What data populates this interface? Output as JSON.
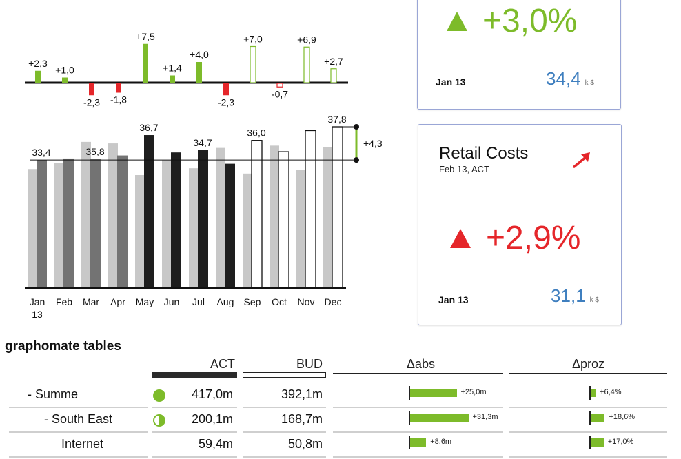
{
  "chart_data": [
    {
      "type": "bar",
      "role": "variance",
      "categories": [
        "Jan 13",
        "Feb",
        "Mar",
        "Apr",
        "May",
        "Jun",
        "Jul",
        "Aug",
        "Sep",
        "Oct",
        "Nov",
        "Dec"
      ],
      "values": [
        2.3,
        1.0,
        -2.3,
        -1.8,
        7.5,
        1.4,
        4.0,
        -2.3,
        7.0,
        -0.7,
        6.9,
        2.7
      ],
      "labels": [
        "+2,3",
        "+1,0",
        "-2,3",
        "-1,8",
        "+7,5",
        "+1,4",
        "+4,0",
        "-2,3",
        "+7,0",
        "-0,7",
        "+6,9",
        "+2,7"
      ],
      "forecast_from_index": 8,
      "colors": {
        "positive": "#7dbb2a",
        "negative": "#e5262a"
      }
    },
    {
      "type": "bar",
      "role": "comparison",
      "categories": [
        "Jan 13",
        "Feb",
        "Mar",
        "Apr",
        "May",
        "Jun",
        "Jul",
        "Aug",
        "Sep",
        "Oct",
        "Nov",
        "Dec"
      ],
      "series": [
        {
          "values": [
            32.2,
            33.0,
            35.8,
            35.6,
            31.4,
            33.4,
            32.3,
            35.0,
            31.6,
            35.3,
            32.1,
            35.1
          ]
        },
        {
          "values": [
            33.4,
            33.6,
            33.5,
            34.0,
            36.7,
            34.4,
            34.7,
            32.9,
            36.0,
            34.5,
            37.3,
            37.8
          ]
        }
      ],
      "value_labels": [
        "33,4",
        "",
        "35,8",
        "",
        "36,7",
        "",
        "34,7",
        "",
        "36,0",
        "",
        "",
        "37,8"
      ],
      "label_index": [
        0,
        2,
        4,
        6,
        8,
        11
      ],
      "forecast_from_index": 8,
      "reference_value": 33.4,
      "difference_label": "+4,3",
      "ylim": [
        16.5,
        38.3
      ],
      "xtick_lines": [
        [
          "Jan",
          "13"
        ],
        [
          "Feb"
        ],
        [
          "Mar"
        ],
        [
          "Apr"
        ],
        [
          "May"
        ],
        [
          "Jun"
        ],
        [
          "Jul"
        ],
        [
          "Aug"
        ],
        [
          "Sep"
        ],
        [
          "Oct"
        ],
        [
          "Nov"
        ],
        [
          "Dec"
        ]
      ],
      "colors": {
        "prev_year": "#c8c8c8",
        "act_early": "#737373",
        "act": "#1e1e1e",
        "forecast_fill": "#ffffff",
        "forecast_stroke": "#111111"
      }
    }
  ],
  "kpi_top": {
    "big_value": "+3,0%",
    "date": "Jan 13",
    "value": "34,4",
    "unit": "k $",
    "color": "#7dbb2a"
  },
  "kpi_retail": {
    "title": "Retail Costs",
    "subtitle": "Feb 13, ACT",
    "big_value": "+2,9%",
    "date": "Jan 13",
    "value": "31,1",
    "unit": "k $",
    "arrow_icon": "arrow-up-right-icon",
    "color": "#e5262a"
  },
  "tables": {
    "title": "graphomate tables",
    "headers": {
      "act": "ACT",
      "bud": "BUD",
      "dabs": "Δabs",
      "dproz": "Δproz"
    },
    "rows": [
      {
        "name": "- Summe",
        "indent": 40,
        "status": "full",
        "act": "417,0m",
        "bud": "392,1m",
        "dabs": 25.0,
        "dabs_label": "+25,0m",
        "dproz": 6.4,
        "dproz_label": "+6,4%"
      },
      {
        "name": "- South East",
        "indent": 64,
        "status": "half",
        "act": "200,1m",
        "bud": "168,7m",
        "dabs": 31.3,
        "dabs_label": "+31,3m",
        "dproz": 18.6,
        "dproz_label": "+18,6%"
      },
      {
        "name": "Internet",
        "indent": 89,
        "status": "none",
        "act": "59,4m",
        "bud": "50,8m",
        "dabs": 8.6,
        "dabs_label": "+8,6m",
        "dproz": 17.0,
        "dproz_label": "+17,0%"
      }
    ]
  }
}
